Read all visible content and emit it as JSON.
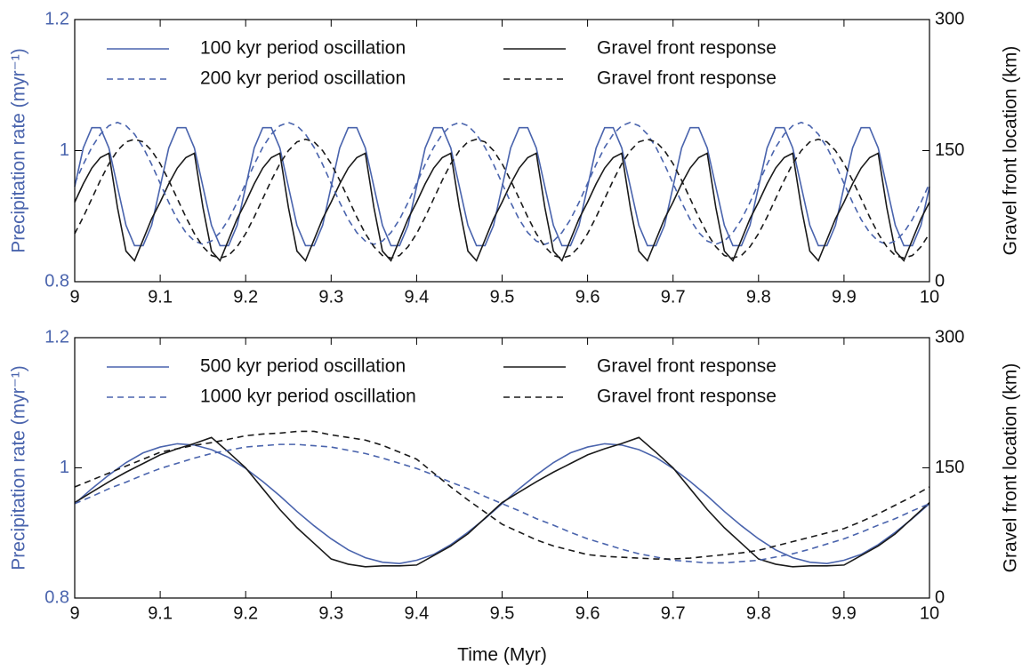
{
  "chart_data": [
    {
      "type": "line",
      "ylabel": "Precipitation rate (myr⁻¹)",
      "ylabel_color": "#4a64ad",
      "y2label": "Gravel front location (km)",
      "xlim": [
        9,
        10
      ],
      "xticks": [
        9,
        9.1,
        9.2,
        9.3,
        9.4,
        9.5,
        9.6,
        9.7,
        9.8,
        9.9,
        10
      ],
      "ylim": [
        0.8,
        1.2
      ],
      "yticks": [
        0.8,
        1,
        1.2
      ],
      "y2lim": [
        0,
        300
      ],
      "y2ticks": [
        0,
        150,
        300
      ],
      "x": [
        9,
        9.01,
        9.02,
        9.03,
        9.04,
        9.05,
        9.06,
        9.07,
        9.08,
        9.09,
        9.1,
        9.11,
        9.12,
        9.13,
        9.14,
        9.15,
        9.16,
        9.17,
        9.18,
        9.19,
        9.2,
        9.21,
        9.22,
        9.23,
        9.24,
        9.25,
        9.26,
        9.27,
        9.28,
        9.29,
        9.3,
        9.31,
        9.32,
        9.33,
        9.34,
        9.35,
        9.36,
        9.37,
        9.38,
        9.39,
        9.4,
        9.41,
        9.42,
        9.43,
        9.44,
        9.45,
        9.46,
        9.47,
        9.48,
        9.49,
        9.5,
        9.51,
        9.52,
        9.53,
        9.54,
        9.55,
        9.56,
        9.57,
        9.58,
        9.59,
        9.6,
        9.61,
        9.62,
        9.63,
        9.64,
        9.65,
        9.66,
        9.67,
        9.68,
        9.69,
        9.7,
        9.71,
        9.72,
        9.73,
        9.74,
        9.75,
        9.76,
        9.77,
        9.78,
        9.79,
        9.8,
        9.81,
        9.82,
        9.83,
        9.84,
        9.85,
        9.86,
        9.87,
        9.88,
        9.89,
        9.9,
        9.91,
        9.92,
        9.93,
        9.94,
        9.95,
        9.96,
        9.97,
        9.98,
        9.99,
        10
      ],
      "series": [
        {
          "name": "100 kyr period oscillation",
          "color": "#4a64ad",
          "dash": "solid",
          "axis": "y",
          "values": [
            0.945,
            1.004,
            1.035,
            1.035,
            1.004,
            0.945,
            0.886,
            0.855,
            0.855,
            0.886,
            0.945,
            1.004,
            1.035,
            1.035,
            1.004,
            0.945,
            0.886,
            0.855,
            0.855,
            0.886,
            0.945,
            1.004,
            1.035,
            1.035,
            1.004,
            0.945,
            0.886,
            0.855,
            0.855,
            0.886,
            0.945,
            1.004,
            1.035,
            1.035,
            1.004,
            0.945,
            0.886,
            0.855,
            0.855,
            0.886,
            0.945,
            1.004,
            1.035,
            1.035,
            1.004,
            0.945,
            0.886,
            0.855,
            0.855,
            0.886,
            0.945,
            1.004,
            1.035,
            1.035,
            1.004,
            0.945,
            0.886,
            0.855,
            0.855,
            0.886,
            0.945,
            1.004,
            1.035,
            1.035,
            1.004,
            0.945,
            0.886,
            0.855,
            0.855,
            0.886,
            0.945,
            1.004,
            1.035,
            1.035,
            1.004,
            0.945,
            0.886,
            0.855,
            0.855,
            0.886,
            0.945,
            1.004,
            1.035,
            1.035,
            1.004,
            0.945,
            0.886,
            0.855,
            0.855,
            0.886,
            0.945,
            1.004,
            1.035,
            1.035,
            1.004,
            0.945,
            0.886,
            0.855,
            0.855,
            0.886,
            0.945
          ]
        },
        {
          "name": "Gravel front response",
          "color": "#1a1a1a",
          "dash": "solid",
          "axis": "y2",
          "values": [
            91,
            112,
            130,
            142,
            147,
            85,
            35,
            24,
            48,
            72,
            91,
            112,
            130,
            142,
            147,
            85,
            35,
            24,
            48,
            72,
            91,
            112,
            130,
            142,
            147,
            85,
            35,
            24,
            48,
            72,
            91,
            112,
            130,
            142,
            147,
            85,
            35,
            24,
            48,
            72,
            91,
            112,
            130,
            142,
            147,
            85,
            35,
            24,
            48,
            72,
            91,
            112,
            130,
            142,
            147,
            85,
            35,
            24,
            48,
            72,
            91,
            112,
            130,
            142,
            147,
            85,
            35,
            24,
            48,
            72,
            91,
            112,
            130,
            142,
            147,
            85,
            35,
            24,
            48,
            72,
            91,
            112,
            130,
            142,
            147,
            85,
            35,
            24,
            48,
            72,
            91,
            112,
            130,
            142,
            147,
            85,
            35,
            24,
            48,
            72,
            91
          ]
        },
        {
          "name": "200 kyr period oscillation",
          "color": "#4a64ad",
          "dash": "dashed",
          "axis": "y",
          "values": [
            0.95,
            0.979,
            1.005,
            1.025,
            1.038,
            1.043,
            1.038,
            1.025,
            1.005,
            0.979,
            0.95,
            0.921,
            0.895,
            0.875,
            0.862,
            0.857,
            0.862,
            0.875,
            0.895,
            0.921,
            0.95,
            0.979,
            1.005,
            1.025,
            1.038,
            1.043,
            1.038,
            1.025,
            1.005,
            0.979,
            0.95,
            0.921,
            0.895,
            0.875,
            0.862,
            0.857,
            0.862,
            0.875,
            0.895,
            0.921,
            0.95,
            0.979,
            1.005,
            1.025,
            1.038,
            1.043,
            1.038,
            1.025,
            1.005,
            0.979,
            0.95,
            0.921,
            0.895,
            0.875,
            0.862,
            0.857,
            0.862,
            0.875,
            0.895,
            0.921,
            0.95,
            0.979,
            1.005,
            1.025,
            1.038,
            1.043,
            1.038,
            1.025,
            1.005,
            0.979,
            0.95,
            0.921,
            0.895,
            0.875,
            0.862,
            0.857,
            0.862,
            0.875,
            0.895,
            0.921,
            0.95,
            0.979,
            1.005,
            1.025,
            1.038,
            1.043,
            1.038,
            1.025,
            1.005,
            0.979,
            0.95,
            0.921,
            0.895,
            0.875,
            0.862,
            0.857,
            0.862,
            0.875,
            0.895,
            0.921,
            0.95
          ]
        },
        {
          "name": "Gravel front response",
          "color": "#1a1a1a",
          "dash": "dashed",
          "axis": "y2",
          "values": [
            55,
            74,
            95,
            116,
            135,
            150,
            160,
            163,
            160,
            150,
            135,
            116,
            95,
            74,
            55,
            40,
            30,
            27,
            30,
            40,
            55,
            74,
            95,
            116,
            135,
            150,
            160,
            163,
            160,
            150,
            135,
            116,
            95,
            74,
            55,
            40,
            30,
            27,
            30,
            40,
            55,
            74,
            95,
            116,
            135,
            150,
            160,
            163,
            160,
            150,
            135,
            116,
            95,
            74,
            55,
            40,
            30,
            27,
            30,
            40,
            55,
            74,
            95,
            116,
            135,
            150,
            160,
            163,
            160,
            150,
            135,
            116,
            95,
            74,
            55,
            40,
            30,
            27,
            30,
            40,
            55,
            74,
            95,
            116,
            135,
            150,
            160,
            163,
            160,
            150,
            135,
            116,
            95,
            74,
            55,
            40,
            30,
            27,
            30,
            40,
            55
          ]
        }
      ]
    },
    {
      "type": "line",
      "xlabel": "Time (Myr)",
      "ylabel": "Precipitation rate (myr⁻¹)",
      "ylabel_color": "#4a64ad",
      "y2label": "Gravel front location (km)",
      "xlim": [
        9,
        10
      ],
      "xticks": [
        9,
        9.1,
        9.2,
        9.3,
        9.4,
        9.5,
        9.6,
        9.7,
        9.8,
        9.9,
        10
      ],
      "ylim": [
        0.8,
        1.2
      ],
      "yticks": [
        0.8,
        1,
        1.2
      ],
      "y2lim": [
        0,
        300
      ],
      "y2ticks": [
        0,
        150,
        300
      ],
      "x": [
        9,
        9.02,
        9.04,
        9.06,
        9.08,
        9.1,
        9.12,
        9.14,
        9.16,
        9.18,
        9.2,
        9.22,
        9.24,
        9.26,
        9.28,
        9.3,
        9.32,
        9.34,
        9.36,
        9.38,
        9.4,
        9.42,
        9.44,
        9.46,
        9.48,
        9.5,
        9.52,
        9.54,
        9.56,
        9.58,
        9.6,
        9.62,
        9.64,
        9.66,
        9.68,
        9.7,
        9.72,
        9.74,
        9.76,
        9.78,
        9.8,
        9.82,
        9.84,
        9.86,
        9.88,
        9.9,
        9.92,
        9.94,
        9.96,
        9.98,
        10
      ],
      "series": [
        {
          "name": "500 kyr period oscillation",
          "color": "#4a64ad",
          "dash": "solid",
          "axis": "y",
          "values": [
            0.945,
            0.968,
            0.989,
            1.008,
            1.023,
            1.032,
            1.037,
            1.035,
            1.028,
            1.016,
            0.999,
            0.979,
            0.957,
            0.933,
            0.911,
            0.891,
            0.874,
            0.862,
            0.855,
            0.853,
            0.858,
            0.867,
            0.882,
            0.901,
            0.922,
            0.945,
            0.968,
            0.989,
            1.008,
            1.023,
            1.032,
            1.037,
            1.035,
            1.028,
            1.016,
            0.999,
            0.979,
            0.957,
            0.933,
            0.911,
            0.891,
            0.874,
            0.862,
            0.855,
            0.853,
            0.858,
            0.867,
            0.882,
            0.901,
            0.922,
            0.945
          ]
        },
        {
          "name": "Gravel front response",
          "color": "#1a1a1a",
          "dash": "solid",
          "axis": "y2",
          "values": [
            110,
            122,
            134,
            145,
            155,
            165,
            172,
            178,
            185,
            168,
            150,
            126,
            102,
            81,
            63,
            45,
            39,
            36,
            37,
            37,
            38,
            49,
            60,
            74,
            92,
            110,
            122,
            134,
            145,
            155,
            165,
            172,
            178,
            185,
            168,
            150,
            126,
            102,
            81,
            63,
            45,
            39,
            36,
            37,
            37,
            38,
            49,
            60,
            74,
            92,
            110
          ]
        },
        {
          "name": "1000 kyr period oscillation",
          "color": "#4a64ad",
          "dash": "dashed",
          "axis": "y",
          "values": [
            0.945,
            0.956,
            0.968,
            0.978,
            0.989,
            0.999,
            1.007,
            1.015,
            1.022,
            1.027,
            1.032,
            1.034,
            1.036,
            1.036,
            1.034,
            1.032,
            1.027,
            1.022,
            1.015,
            1.007,
            0.999,
            0.989,
            0.978,
            0.968,
            0.956,
            0.945,
            0.934,
            0.922,
            0.912,
            0.901,
            0.891,
            0.883,
            0.875,
            0.868,
            0.863,
            0.858,
            0.856,
            0.854,
            0.854,
            0.856,
            0.858,
            0.863,
            0.868,
            0.875,
            0.883,
            0.891,
            0.901,
            0.912,
            0.922,
            0.934,
            0.945
          ]
        },
        {
          "name": "Gravel front response",
          "color": "#1a1a1a",
          "dash": "dashed",
          "axis": "y2",
          "values": [
            128,
            136,
            144,
            152,
            160,
            168,
            172,
            176,
            179,
            183,
            187,
            189,
            190,
            192,
            192,
            188,
            185,
            182,
            176,
            168,
            160,
            144,
            128,
            113,
            99,
            85,
            76,
            67,
            60,
            55,
            50,
            48,
            47,
            46,
            45,
            45,
            46,
            48,
            50,
            52,
            55,
            60,
            65,
            70,
            75,
            80,
            88,
            97,
            107,
            117,
            128
          ]
        }
      ]
    }
  ]
}
